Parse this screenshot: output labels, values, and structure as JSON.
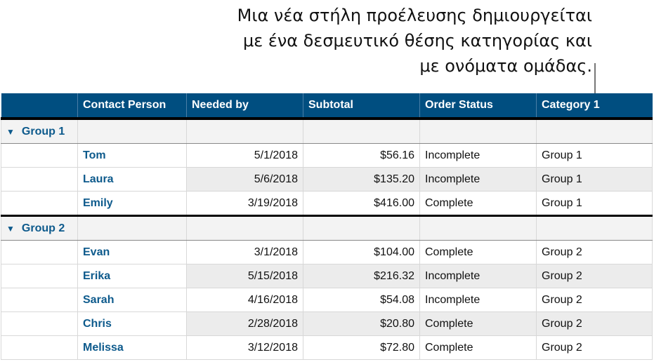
{
  "callout": {
    "lines": [
      "Μια νέα στήλη προέλευσης δημιουργείται",
      "με ένα δεσμευτικό θέσης κατηγορίας και",
      "με ονόματα ομάδας."
    ]
  },
  "table": {
    "headers": [
      "",
      "Contact Person",
      "Needed by",
      "Subtotal",
      "Order Status",
      "Category 1"
    ],
    "groups": [
      {
        "name": "Group 1",
        "rows": [
          [
            "Tom",
            "5/1/2018",
            "$56.16",
            "Incomplete",
            "Group 1"
          ],
          [
            "Laura",
            "5/6/2018",
            "$135.20",
            "Incomplete",
            "Group 1"
          ],
          [
            "Emily",
            "3/19/2018",
            "$416.00",
            "Complete",
            "Group 1"
          ]
        ]
      },
      {
        "name": "Group 2",
        "rows": [
          [
            "Evan",
            "3/1/2018",
            "$104.00",
            "Complete",
            "Group 2"
          ],
          [
            "Erika",
            "5/15/2018",
            "$216.32",
            "Incomplete",
            "Group 2"
          ],
          [
            "Sarah",
            "4/16/2018",
            "$54.08",
            "Incomplete",
            "Group 2"
          ],
          [
            "Chris",
            "2/28/2018",
            "$20.80",
            "Complete",
            "Group 2"
          ],
          [
            "Melissa",
            "3/12/2018",
            "$72.80",
            "Complete",
            "Group 2"
          ]
        ]
      }
    ]
  },
  "colors": {
    "header": "#004e80",
    "name_text": "#0d5a8c"
  }
}
